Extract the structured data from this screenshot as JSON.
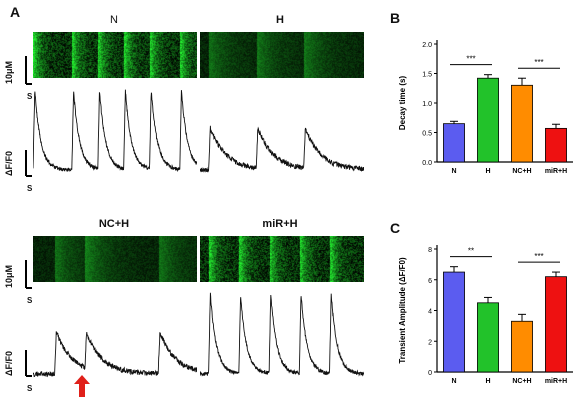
{
  "panel_a": {
    "letter": "A",
    "conditions": [
      {
        "label": "N",
        "intensity": "high",
        "transients": [
          0.0,
          0.45,
          0.75,
          1.05,
          1.35,
          1.7
        ]
      },
      {
        "label": "H",
        "intensity": "low",
        "transients": [
          0.1,
          0.65,
          1.2
        ]
      },
      {
        "label": "NC+H",
        "intensity": "low",
        "transients": [
          0.25,
          0.6,
          1.45
        ]
      },
      {
        "label": "miR+H",
        "intensity": "high",
        "transients": [
          0.1,
          0.45,
          0.8,
          1.15,
          1.5
        ]
      }
    ],
    "scale_length": "10μM",
    "scale_time": "S",
    "trace_ylabel": "ΔF/F0",
    "trace_time": "S"
  },
  "panel_b": {
    "letter": "B"
  },
  "panel_c": {
    "letter": "C"
  },
  "colors": {
    "N": "#5b5cf0",
    "H": "#22c22a",
    "NC+H": "#ff8c00",
    "miR+H": "#ee1111",
    "scan_green": "#2ecc40",
    "arrow": "#e0201a"
  },
  "chart_data": [
    {
      "type": "bar",
      "panel": "B",
      "categories": [
        "N",
        "H",
        "NC+H",
        "miR+H"
      ],
      "values": [
        0.65,
        1.42,
        1.3,
        0.57
      ],
      "errors": [
        0.04,
        0.06,
        0.12,
        0.07
      ],
      "ylabel": "Decay time (s)",
      "ylim": [
        0,
        2.0
      ],
      "yticks": [
        "0.0",
        "0.5",
        "1.0",
        "1.5",
        "2.0"
      ],
      "significance": [
        {
          "from": 0,
          "to": 1,
          "label": "***"
        },
        {
          "from": 2,
          "to": 3,
          "label": "***"
        }
      ]
    },
    {
      "type": "bar",
      "panel": "C",
      "categories": [
        "N",
        "H",
        "NC+H",
        "miR+H"
      ],
      "values": [
        6.5,
        4.5,
        3.3,
        6.2
      ],
      "errors": [
        0.35,
        0.35,
        0.45,
        0.3
      ],
      "ylabel": "Transient Amplitude (ΔF/F0)",
      "ylim": [
        0,
        8
      ],
      "yticks": [
        "0",
        "2",
        "4",
        "6",
        "8"
      ],
      "significance": [
        {
          "from": 0,
          "to": 1,
          "label": "**"
        },
        {
          "from": 2,
          "to": 3,
          "label": "***"
        }
      ]
    }
  ]
}
